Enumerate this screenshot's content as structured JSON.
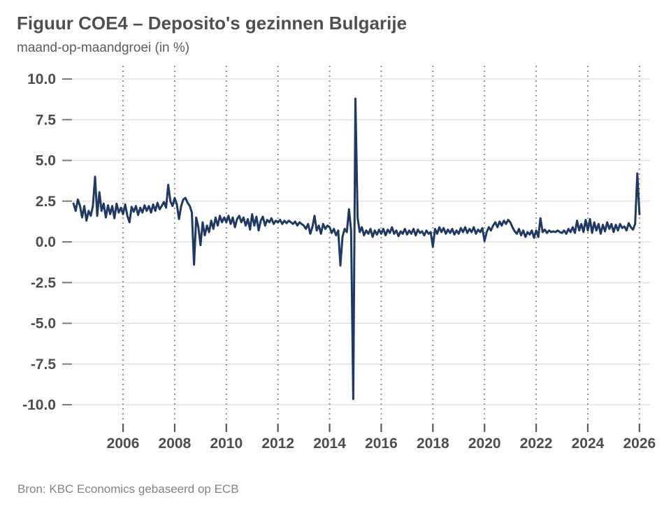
{
  "header": {
    "title": "Figuur COE4 – Deposito's gezinnen Bulgarije",
    "subtitle": "maand-op-maandgroei (in %)"
  },
  "footer": {
    "source": "Bron: KBC Economics gebaseerd op ECB"
  },
  "colors": {
    "line": "#1f3864",
    "title_text": "#4f4f4f",
    "subtitle_text": "#5c5c5c",
    "tick_label_text": "#4d4d4d",
    "grid_horizontal": "#dcdcdc",
    "grid_vertical_dots": "#919191",
    "axis_tick_mark": "#7a7a7a",
    "bottom_tick_mark": "#5a5a5a",
    "source_text": "#818181",
    "background": "#ffffff"
  },
  "chart_data": {
    "type": "line",
    "title": "Figuur COE4 – Deposito's gezinnen Bulgarije",
    "subtitle": "maand-op-maandgroei (in %)",
    "source": "Bron: KBC Economics gebaseerd op ECB",
    "xlabel": "",
    "ylabel": "maand-op-maandgroei (in %)",
    "ylim": [
      -10,
      10
    ],
    "xlim": [
      2004.05,
      2026.41
    ],
    "grid": {
      "horizontal": "solid",
      "vertical": "dotted",
      "legend": "none"
    },
    "y_ticks": [
      {
        "value": 10,
        "label": "10.0"
      },
      {
        "value": 7.5,
        "label": "7.5"
      },
      {
        "value": 5,
        "label": "5.0"
      },
      {
        "value": 2.5,
        "label": "2.5"
      },
      {
        "value": 0,
        "label": "0.0"
      },
      {
        "value": -2.5,
        "label": "-2.5"
      },
      {
        "value": -5,
        "label": "-5.0"
      },
      {
        "value": -7.5,
        "label": "-7.5"
      },
      {
        "value": -10,
        "label": "-10.0"
      }
    ],
    "x_ticks": [
      {
        "value": 2006,
        "label": "2006"
      },
      {
        "value": 2008,
        "label": "2008"
      },
      {
        "value": 2010,
        "label": "2010"
      },
      {
        "value": 2012,
        "label": "2012"
      },
      {
        "value": 2014,
        "label": "2014"
      },
      {
        "value": 2016,
        "label": "2016"
      },
      {
        "value": 2018,
        "label": "2018"
      },
      {
        "value": 2020,
        "label": "2020"
      },
      {
        "value": 2022,
        "label": "2022"
      },
      {
        "value": 2024,
        "label": "2024"
      },
      {
        "value": 2026,
        "label": "2026"
      }
    ],
    "series": [
      {
        "name": "Deposito's gezinnen Bulgarije (maand-op-maandgroei, %)",
        "color": "#1f3864",
        "frequency": "monthly",
        "monthly": [
          {
            "year": 2004,
            "start_month": 2,
            "values": [
              2.35,
              1.9,
              2.6,
              2.2,
              1.5,
              2.2,
              1.3,
              1.9,
              1.6,
              2.2,
              4.0
            ]
          },
          {
            "year": 2005,
            "start_month": 1,
            "values": [
              1.6,
              3.05,
              1.9,
              2.35,
              1.5,
              2.25,
              1.7,
              2.2,
              1.45,
              2.35,
              1.8,
              2.1
            ]
          },
          {
            "year": 2006,
            "start_month": 1,
            "values": [
              1.7,
              2.3,
              1.6,
              1.2,
              2.15,
              1.85,
              2.2,
              1.65,
              2.1,
              1.8,
              2.25,
              1.9
            ]
          },
          {
            "year": 2007,
            "start_month": 1,
            "values": [
              2.2,
              1.8,
              2.3,
              1.9,
              2.4,
              2.0,
              2.2,
              2.45,
              2.1,
              3.5,
              2.5,
              2.2
            ]
          },
          {
            "year": 2008,
            "start_month": 1,
            "values": [
              2.7,
              2.3,
              1.4,
              2.2,
              2.6,
              2.7,
              2.4,
              2.2,
              1.8,
              -1.4,
              1.5,
              0.9
            ]
          },
          {
            "year": 2009,
            "start_month": 1,
            "values": [
              -0.2,
              1.2,
              0.4,
              1.0,
              0.6,
              1.3,
              0.8,
              1.5,
              1.0,
              1.6,
              1.2,
              1.5
            ]
          },
          {
            "year": 2010,
            "start_month": 1,
            "values": [
              1.2,
              1.6,
              1.1,
              1.5,
              0.9,
              1.4,
              1.6,
              1.2,
              1.5,
              1.0,
              1.4,
              0.75
            ]
          },
          {
            "year": 2011,
            "start_month": 1,
            "values": [
              1.7,
              1.0,
              1.55,
              0.7,
              1.3,
              1.55,
              1.0,
              1.35,
              1.2,
              1.45,
              1.1,
              1.3
            ]
          },
          {
            "year": 2012,
            "start_month": 1,
            "values": [
              1.2,
              1.35,
              1.1,
              1.3,
              1.15,
              1.3,
              1.2,
              1.1,
              1.25,
              1.0,
              1.2,
              1.1
            ]
          },
          {
            "year": 2013,
            "start_month": 1,
            "values": [
              1.0,
              0.8,
              1.1,
              0.5,
              0.9,
              1.6,
              0.7,
              1.0,
              0.5,
              1.1,
              0.8,
              1.0
            ]
          },
          {
            "year": 2014,
            "start_month": 1,
            "values": [
              0.9,
              0.55,
              0.8,
              0.4,
              0.7,
              -1.45,
              0.3,
              0.8,
              0.6,
              2.0,
              0.7,
              -9.65
            ]
          },
          {
            "year": 2015,
            "start_month": 1,
            "values": [
              8.8,
              1.5,
              0.6,
              0.9,
              0.4,
              0.7,
              0.5,
              0.8,
              0.3,
              0.7,
              0.45,
              0.75
            ]
          },
          {
            "year": 2016,
            "start_month": 1,
            "values": [
              0.5,
              0.8,
              0.4,
              0.75,
              0.55,
              0.9,
              0.5,
              0.7,
              0.35,
              0.65,
              0.5,
              0.8
            ]
          },
          {
            "year": 2017,
            "start_month": 1,
            "values": [
              0.45,
              0.7,
              0.5,
              0.8,
              0.4,
              0.75,
              0.55,
              0.65,
              0.4,
              0.7,
              0.5,
              0.6
            ]
          },
          {
            "year": 2018,
            "start_month": 1,
            "values": [
              -0.3,
              0.8,
              0.5,
              0.9,
              0.6,
              0.85,
              0.5,
              0.75,
              0.55,
              0.8,
              0.45,
              0.7
            ]
          },
          {
            "year": 2019,
            "start_month": 1,
            "values": [
              0.5,
              0.85,
              0.6,
              0.9,
              0.55,
              0.8,
              0.6,
              0.9,
              0.5,
              0.75,
              0.6,
              0.85
            ]
          },
          {
            "year": 2020,
            "start_month": 1,
            "values": [
              0.05,
              0.6,
              0.9,
              0.7,
              1.0,
              1.2,
              0.9,
              1.25,
              1.0,
              1.3,
              1.1,
              1.35
            ]
          },
          {
            "year": 2021,
            "start_month": 1,
            "values": [
              1.2,
              0.9,
              0.65,
              0.5,
              0.8,
              0.4,
              0.7,
              0.3,
              0.6,
              0.45,
              0.7,
              0.25
            ]
          },
          {
            "year": 2022,
            "start_month": 1,
            "values": [
              0.7,
              0.3,
              1.45,
              0.6,
              0.75,
              0.55,
              0.7,
              0.6,
              0.65,
              0.6,
              0.7,
              0.6
            ]
          },
          {
            "year": 2023,
            "start_month": 1,
            "values": [
              0.55,
              0.7,
              0.5,
              0.8,
              0.6,
              0.9,
              0.55,
              1.3,
              0.7,
              1.1,
              0.6,
              1.35
            ]
          },
          {
            "year": 2024,
            "start_month": 1,
            "values": [
              0.7,
              1.4,
              0.55,
              1.2,
              0.7,
              1.1,
              0.5,
              1.05,
              0.65,
              1.2,
              0.8,
              1.1
            ]
          },
          {
            "year": 2025,
            "start_month": 1,
            "values": [
              0.6,
              1.05,
              0.7,
              1.1,
              0.85,
              0.95,
              0.7,
              1.15,
              0.9,
              0.75,
              1.1,
              4.2
            ]
          },
          {
            "year": 2026,
            "start_month": 1,
            "values": [
              1.7
            ]
          }
        ]
      }
    ]
  }
}
